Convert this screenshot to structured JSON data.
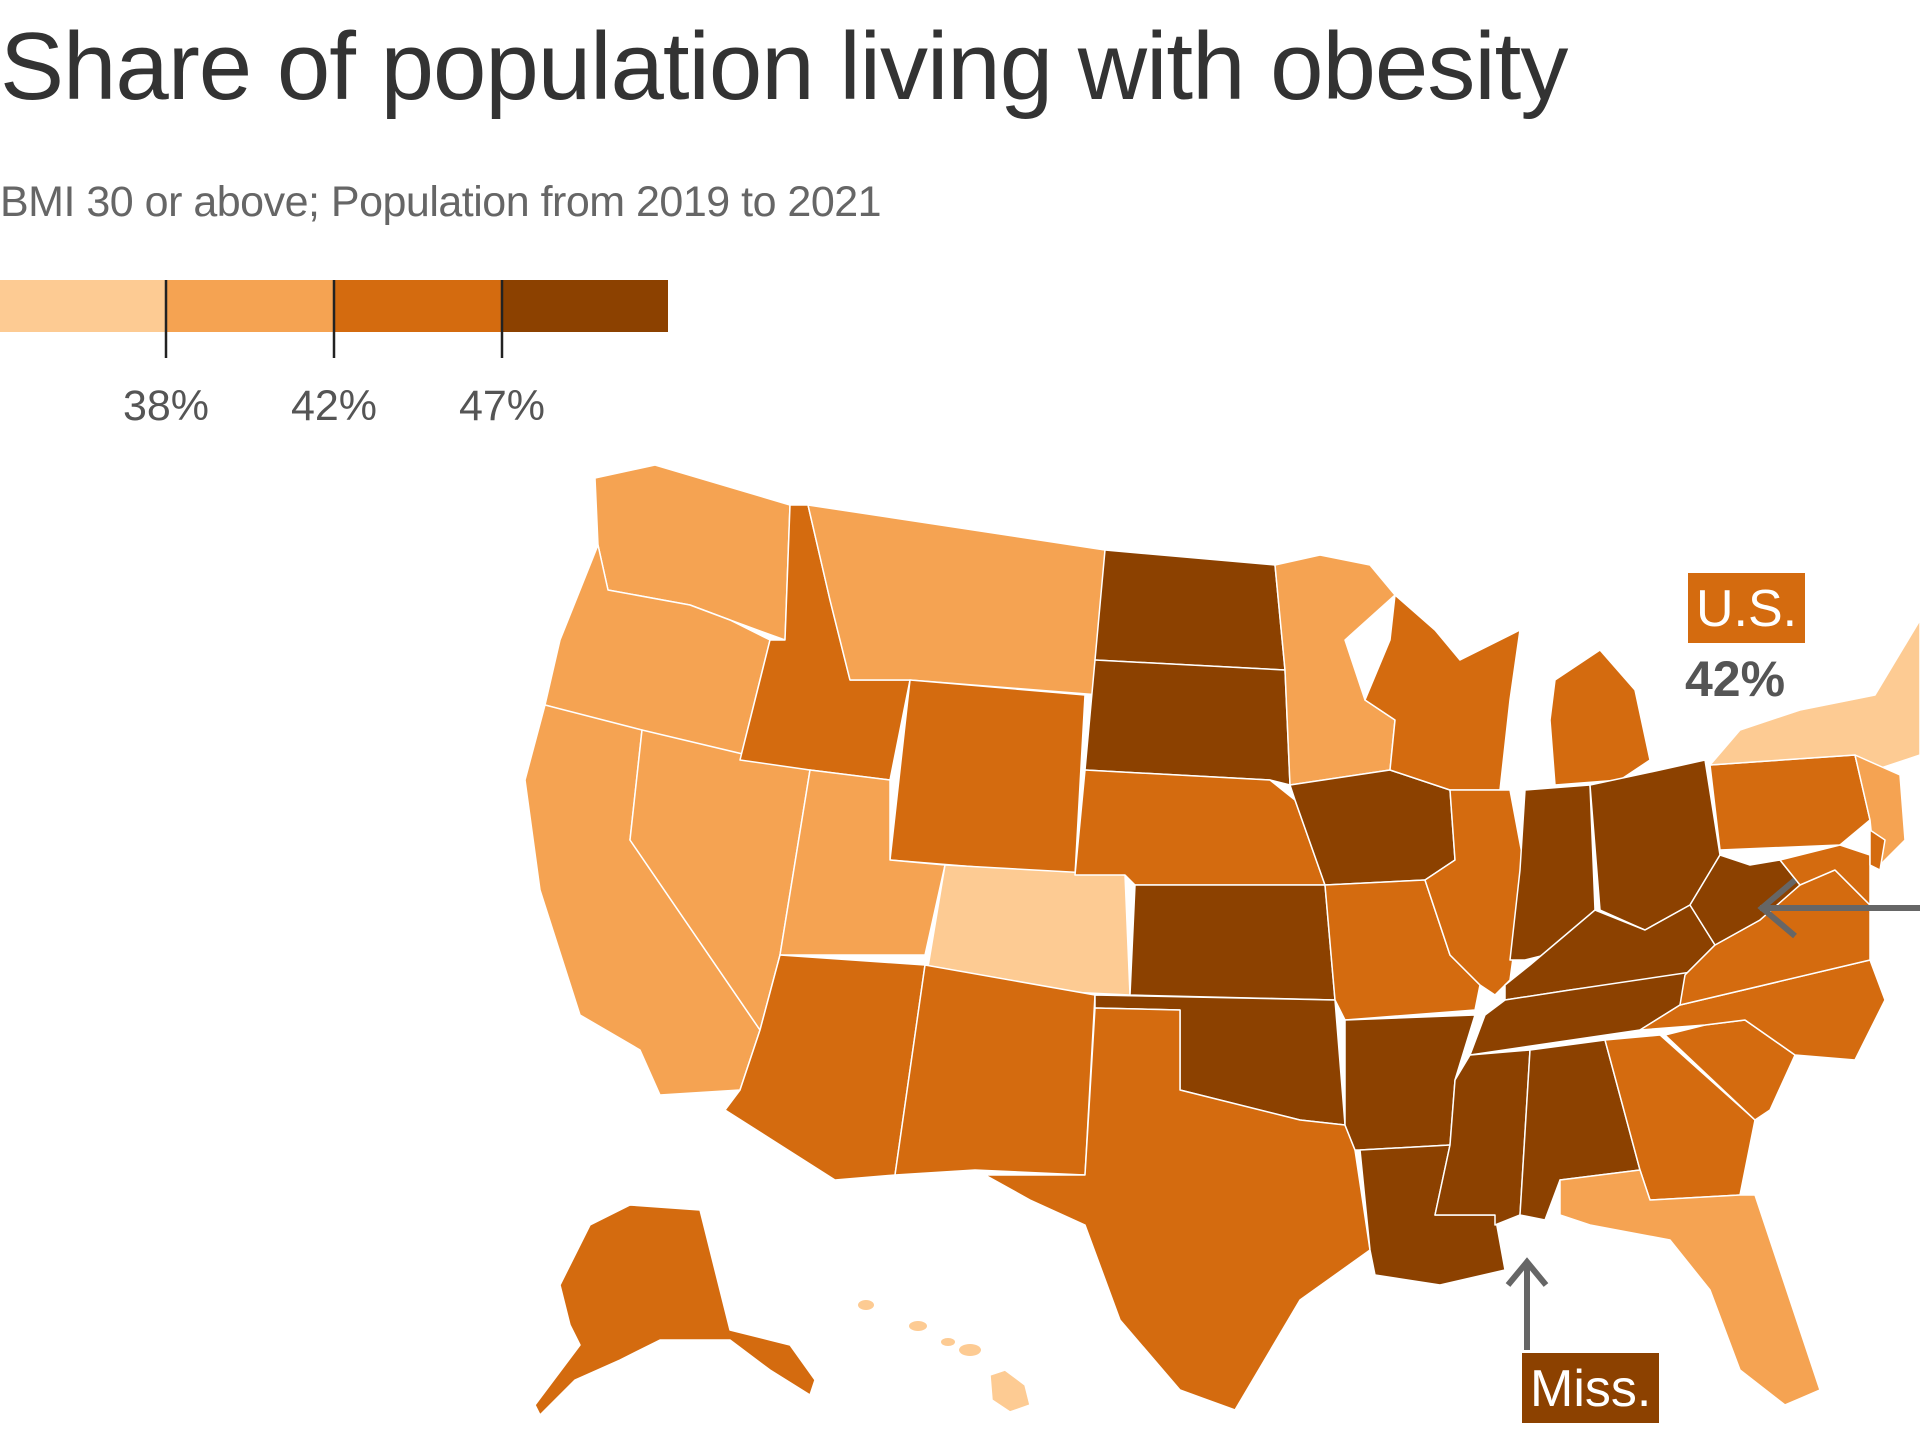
{
  "title": "Share of population living with obesity",
  "subtitle": "BMI 30 or above; Population from 2019 to 2021",
  "legend": {
    "colors": [
      "#fdcb93",
      "#f5a352",
      "#d46b0f",
      "#8c4100"
    ],
    "thresholds": [
      "38%",
      "42%",
      "47%"
    ]
  },
  "colors": {
    "tier1": "#fdcb93",
    "tier2": "#f5a352",
    "tier3": "#d46b0f",
    "tier4": "#8c4100",
    "annotation": "#666666",
    "border": "#ffffff"
  },
  "callouts": {
    "us": {
      "label": "U.S.",
      "value": "42%"
    },
    "miss": {
      "label": "Miss."
    }
  },
  "states": [
    {
      "name": "WA",
      "tier": 2
    },
    {
      "name": "OR",
      "tier": 2
    },
    {
      "name": "CA",
      "tier": 2
    },
    {
      "name": "NV",
      "tier": 2
    },
    {
      "name": "ID",
      "tier": 3
    },
    {
      "name": "MT",
      "tier": 2
    },
    {
      "name": "WY",
      "tier": 3
    },
    {
      "name": "UT",
      "tier": 2
    },
    {
      "name": "CO",
      "tier": 1
    },
    {
      "name": "AZ",
      "tier": 3
    },
    {
      "name": "NM",
      "tier": 3
    },
    {
      "name": "ND",
      "tier": 4
    },
    {
      "name": "SD",
      "tier": 4
    },
    {
      "name": "NE",
      "tier": 3
    },
    {
      "name": "KS",
      "tier": 4
    },
    {
      "name": "OK",
      "tier": 4
    },
    {
      "name": "TX",
      "tier": 3
    },
    {
      "name": "MN",
      "tier": 2
    },
    {
      "name": "IA",
      "tier": 4
    },
    {
      "name": "MO",
      "tier": 3
    },
    {
      "name": "AR",
      "tier": 4
    },
    {
      "name": "LA",
      "tier": 4
    },
    {
      "name": "WI",
      "tier": 3
    },
    {
      "name": "IL",
      "tier": 3
    },
    {
      "name": "MI",
      "tier": 3
    },
    {
      "name": "IN",
      "tier": 4
    },
    {
      "name": "OH",
      "tier": 4
    },
    {
      "name": "KY",
      "tier": 4
    },
    {
      "name": "TN",
      "tier": 4
    },
    {
      "name": "MS",
      "tier": 4
    },
    {
      "name": "AL",
      "tier": 4
    },
    {
      "name": "GA",
      "tier": 3
    },
    {
      "name": "FL",
      "tier": 2
    },
    {
      "name": "SC",
      "tier": 3
    },
    {
      "name": "NC",
      "tier": 3
    },
    {
      "name": "VA",
      "tier": 3
    },
    {
      "name": "WV",
      "tier": 4
    },
    {
      "name": "PA",
      "tier": 3
    },
    {
      "name": "NY",
      "tier": 1
    },
    {
      "name": "NJ",
      "tier": 2
    },
    {
      "name": "MD",
      "tier": 3
    },
    {
      "name": "DE",
      "tier": 3
    },
    {
      "name": "AK",
      "tier": 3
    },
    {
      "name": "HI",
      "tier": 1
    }
  ]
}
